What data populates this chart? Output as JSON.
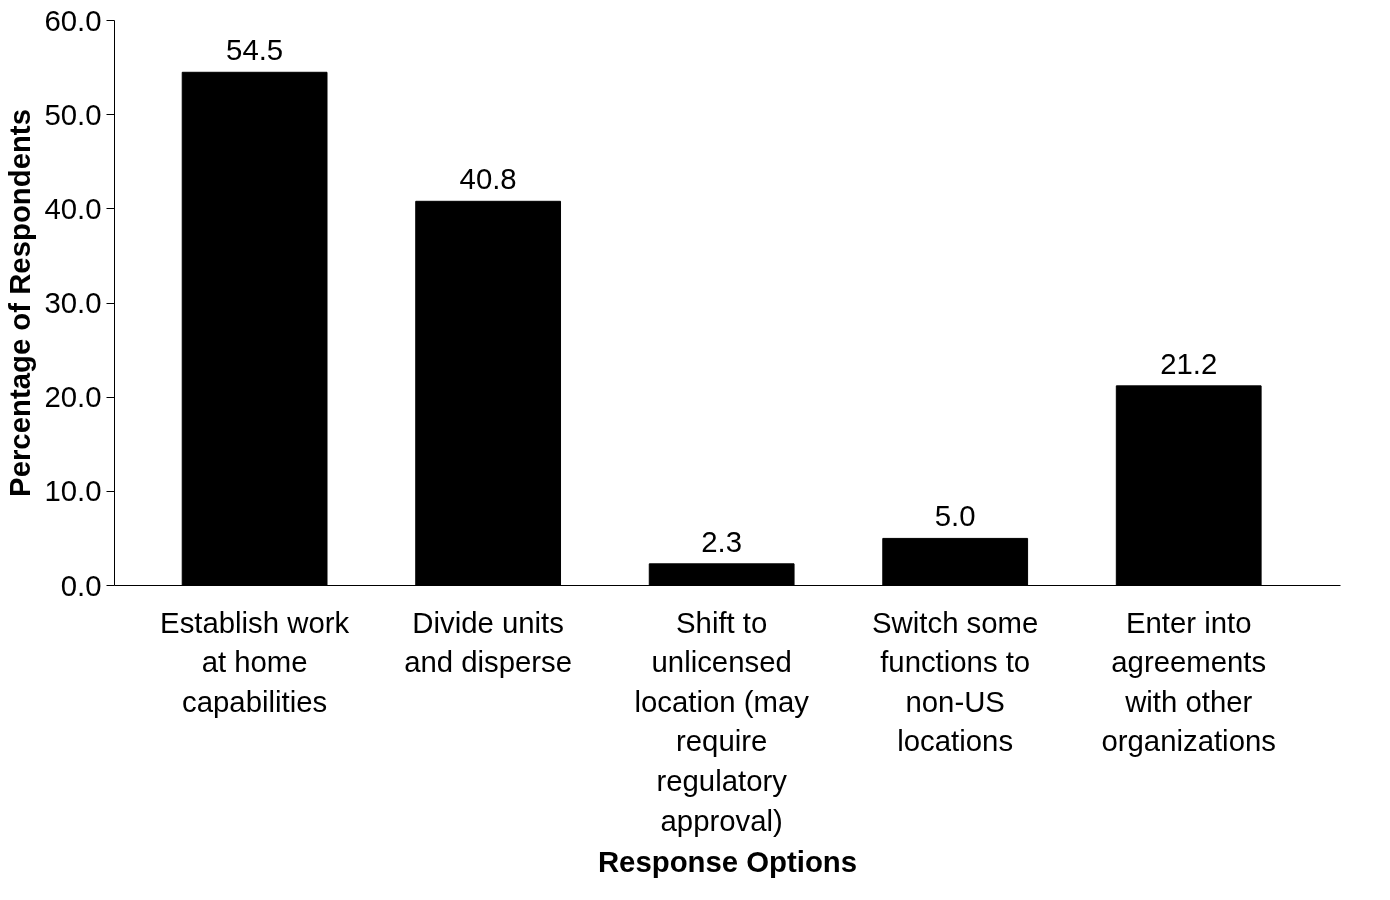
{
  "chart_data": {
    "type": "bar",
    "xlabel": "Response Options",
    "ylabel": "Percentage of Respondents",
    "categories": [
      "Establish work at home capabilities",
      "Divide units and disperse",
      "Shift to unlicensed location (may require regulatory approval)",
      "Switch some functions to non-US locations",
      "Enter into agreements with other organizations"
    ],
    "values": [
      54.5,
      40.8,
      2.3,
      5.0,
      21.2
    ],
    "color": "#000000",
    "ylim": [
      0,
      60
    ],
    "yticks": [
      {
        "value": 0,
        "label": "0.0"
      },
      {
        "value": 10,
        "label": "10.0"
      },
      {
        "value": 20,
        "label": "20.0"
      },
      {
        "value": 30,
        "label": "30.0"
      },
      {
        "value": 40,
        "label": "40.0"
      },
      {
        "value": 50,
        "label": "50.0"
      },
      {
        "value": 60,
        "label": "60.0"
      }
    ],
    "value_labels": [
      "54.5",
      "40.8",
      "2.3",
      "5.0",
      "21.2"
    ],
    "grid": false
  }
}
